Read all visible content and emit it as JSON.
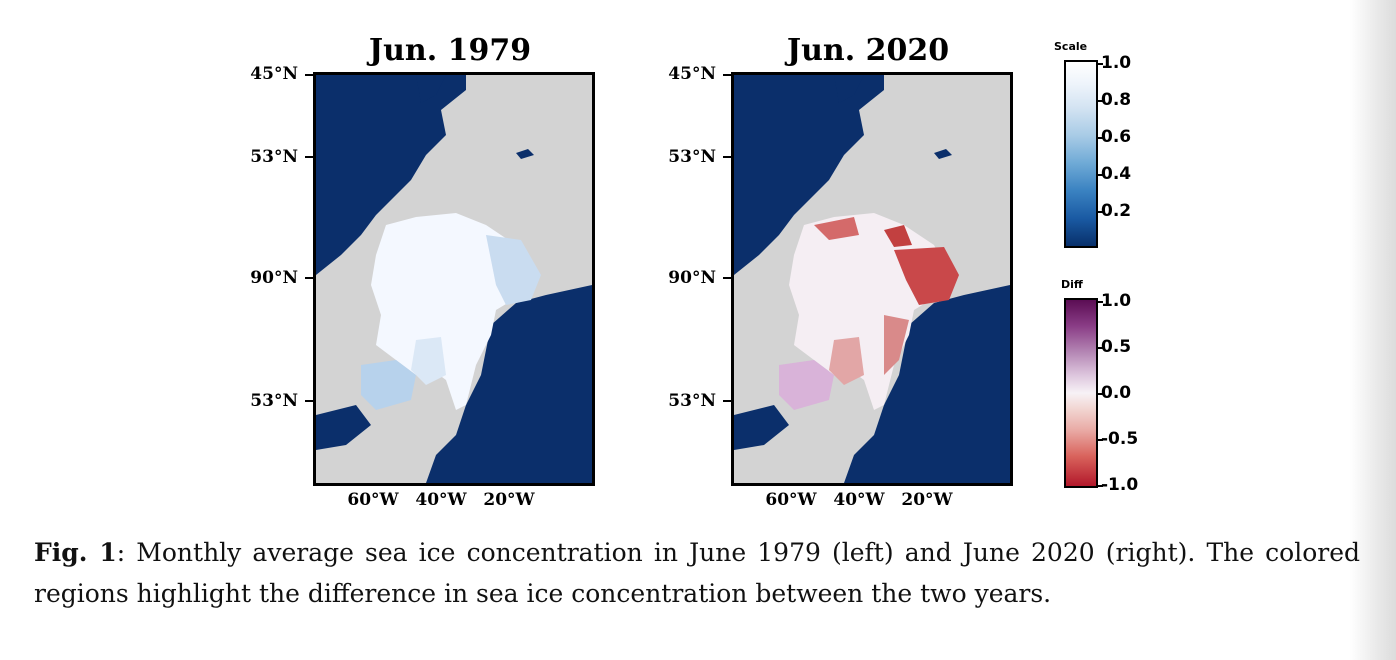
{
  "maps": [
    {
      "title": "Jun. 1979",
      "lat_labels": [
        "45°N",
        "53°N",
        "90°N",
        "53°N"
      ],
      "lon_labels": [
        "60°W",
        "40°W",
        "20°W"
      ]
    },
    {
      "title": "Jun. 2020",
      "lat_labels": [
        "45°N",
        "53°N",
        "90°N",
        "53°N"
      ],
      "lon_labels": [
        "60°W",
        "40°W",
        "20°W"
      ]
    }
  ],
  "colorbars": {
    "scale": {
      "title": "Scale",
      "ticks": [
        "1.0",
        "0.8",
        "0.6",
        "0.4",
        "0.2"
      ],
      "range": [
        0,
        1.0
      ]
    },
    "diff": {
      "title": "Diff",
      "ticks": [
        "1.0",
        "0.5",
        "0.0",
        "-0.5",
        "-1.0"
      ],
      "range": [
        -1.0,
        1.0
      ]
    }
  },
  "colors": {
    "ocean": "#0b2f6b",
    "land": "#d3d3d3",
    "ice": "#f4f8ff",
    "decline": "#c0392b"
  },
  "caption": {
    "label": "Fig. 1",
    "text": ": Monthly average sea ice concentration in June 1979 (left) and June 2020 (right). The colored regions highlight the difference in sea ice concentration between the two years."
  }
}
